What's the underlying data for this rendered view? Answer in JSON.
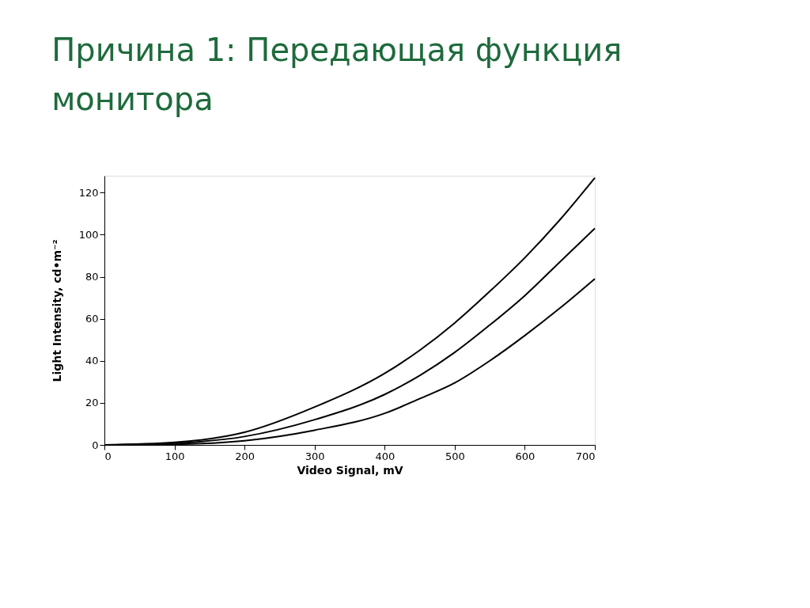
{
  "chart_data": {
    "type": "line",
    "title": "Причина 1: Передающая функция монитора",
    "xlabel": "Video Signal, mV",
    "ylabel": "Light Intensity, cd•m⁻²",
    "x": [
      0,
      100,
      200,
      300,
      400,
      450,
      500,
      550,
      600,
      650,
      700
    ],
    "series": [
      {
        "color": "#000000",
        "values": [
          0,
          1.2,
          6,
          18,
          34,
          45,
          58,
          73,
          89,
          107,
          127
        ]
      },
      {
        "color": "#000000",
        "values": [
          0,
          0.8,
          4,
          12,
          24,
          33,
          44,
          57,
          71,
          87,
          103
        ]
      },
      {
        "color": "#000000",
        "values": [
          0,
          0.3,
          2,
          7,
          15,
          22,
          29.5,
          40,
          52,
          65,
          79
        ]
      }
    ],
    "xlim": [
      0,
      700
    ],
    "xticks": [
      0,
      100,
      200,
      300,
      400,
      500,
      600,
      700
    ],
    "ylim": [
      0,
      128
    ],
    "yticks": [
      0,
      20,
      40,
      60,
      80,
      100,
      120
    ],
    "grid": false,
    "legend": false,
    "marker": "none",
    "line_style": "solid"
  }
}
